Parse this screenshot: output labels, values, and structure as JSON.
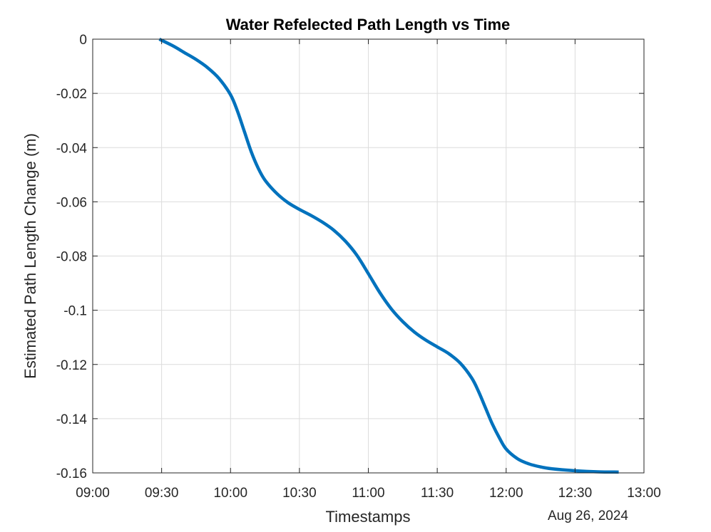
{
  "chart_data": {
    "type": "line",
    "title": "Water Refelected Path Length vs Time",
    "xlabel": "Timestamps",
    "ylabel": "Estimated Path Length Change (m)",
    "date_label": "Aug 26, 2024",
    "xlim": [
      "09:00",
      "13:00"
    ],
    "ylim": [
      -0.16,
      0
    ],
    "x_ticks": [
      "09:00",
      "09:30",
      "10:00",
      "10:30",
      "11:00",
      "11:30",
      "12:00",
      "12:30",
      "13:00"
    ],
    "y_ticks": [
      "0",
      "-0.02",
      "-0.04",
      "-0.06",
      "-0.08",
      "-0.1",
      "-0.12",
      "-0.14",
      "-0.16"
    ],
    "grid": true,
    "series": [
      {
        "color": "#0072BD",
        "x": [
          "09:29",
          "09:35",
          "09:40",
          "09:45",
          "09:50",
          "09:55",
          "10:00",
          "10:03",
          "10:06",
          "10:09",
          "10:12",
          "10:15",
          "10:20",
          "10:25",
          "10:30",
          "10:35",
          "10:40",
          "10:45",
          "10:50",
          "10:55",
          "11:00",
          "11:05",
          "11:10",
          "11:15",
          "11:20",
          "11:25",
          "11:30",
          "11:35",
          "11:40",
          "11:45",
          "11:48",
          "11:51",
          "11:54",
          "11:57",
          "12:00",
          "12:05",
          "12:10",
          "12:15",
          "12:20",
          "12:30",
          "12:40",
          "12:49"
        ],
        "y": [
          0,
          -0.0025,
          -0.005,
          -0.0075,
          -0.0105,
          -0.0145,
          -0.0205,
          -0.0265,
          -0.034,
          -0.0415,
          -0.0475,
          -0.052,
          -0.0568,
          -0.0603,
          -0.0628,
          -0.065,
          -0.0675,
          -0.0705,
          -0.0745,
          -0.0797,
          -0.0865,
          -0.0935,
          -0.0995,
          -0.1042,
          -0.108,
          -0.111,
          -0.1135,
          -0.116,
          -0.1195,
          -0.125,
          -0.13,
          -0.136,
          -0.142,
          -0.147,
          -0.1512,
          -0.1548,
          -0.1567,
          -0.1578,
          -0.1585,
          -0.1592,
          -0.1596,
          -0.1597
        ]
      }
    ]
  }
}
